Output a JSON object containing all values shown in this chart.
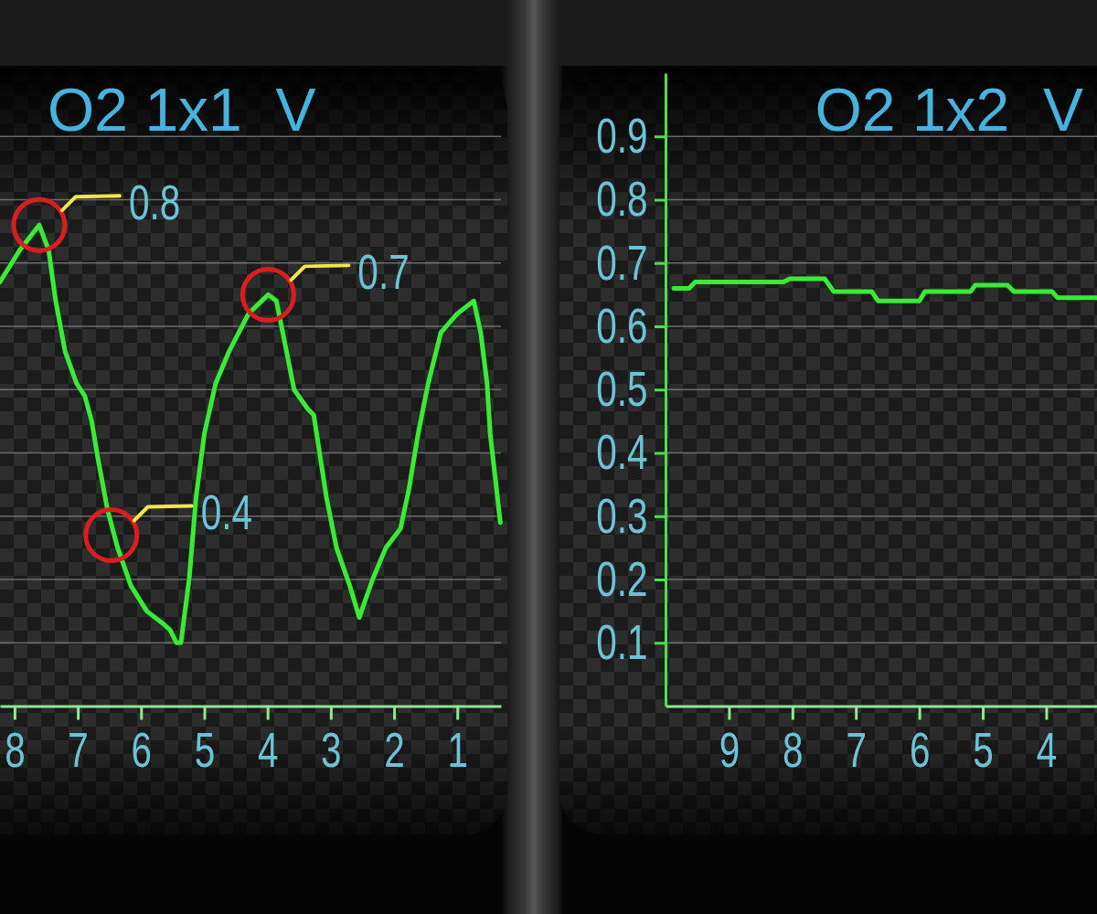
{
  "chart_data": [
    {
      "type": "line",
      "title": "O2 1x1  V",
      "x": [
        8.23,
        7.92,
        7.61,
        7.46,
        7.35,
        7.2,
        7.02,
        6.89,
        6.78,
        6.68,
        6.53,
        6.37,
        6.16,
        5.91,
        5.65,
        5.54,
        5.44,
        5.37,
        5.24,
        5.13,
        5.0,
        4.82,
        4.61,
        4.3,
        3.99,
        3.86,
        3.74,
        3.58,
        3.37,
        3.27,
        3.07,
        2.91,
        2.7,
        2.55,
        2.34,
        2.13,
        1.9,
        1.77,
        1.62,
        1.46,
        1.26,
        1.0,
        0.74,
        0.63,
        0.53,
        0.48,
        0.32
      ],
      "series": [
        {
          "color": "#3ee83a",
          "values": [
            0.67,
            0.72,
            0.76,
            0.72,
            0.64,
            0.56,
            0.51,
            0.49,
            0.45,
            0.39,
            0.31,
            0.25,
            0.19,
            0.15,
            0.13,
            0.12,
            0.1,
            0.1,
            0.2,
            0.33,
            0.43,
            0.51,
            0.56,
            0.62,
            0.65,
            0.64,
            0.58,
            0.5,
            0.47,
            0.46,
            0.33,
            0.25,
            0.19,
            0.14,
            0.2,
            0.25,
            0.28,
            0.34,
            0.43,
            0.51,
            0.59,
            0.62,
            0.64,
            0.59,
            0.51,
            0.43,
            0.29
          ]
        }
      ],
      "xlim": [
        8.23,
        0.31
      ],
      "xticks": [
        8,
        7,
        6,
        5,
        4,
        3,
        2,
        1
      ],
      "ylim": [
        0,
        0.9
      ],
      "yticks": [
        0.1,
        0.2,
        0.3,
        0.4,
        0.5,
        0.6,
        0.7,
        0.8,
        0.9
      ],
      "tick_labels": "x",
      "grid": "y",
      "annotations": [
        {
          "text": "0.8",
          "x": 7.61,
          "y": 0.76
        },
        {
          "text": "0.7",
          "x": 3.99,
          "y": 0.65
        },
        {
          "text": "0.4",
          "x": 6.47,
          "y": 0.27
        }
      ]
    },
    {
      "type": "line",
      "title": "O2 1x2  V",
      "x": [
        9.87,
        9.63,
        9.53,
        8.14,
        8.04,
        7.49,
        7.35,
        6.75,
        6.65,
        6.0,
        5.91,
        5.19,
        5.12,
        4.61,
        4.51,
        3.91,
        3.82,
        3.2
      ],
      "series": [
        {
          "color": "#3ee83a",
          "values": [
            0.66,
            0.66,
            0.67,
            0.67,
            0.675,
            0.675,
            0.655,
            0.655,
            0.64,
            0.64,
            0.655,
            0.655,
            0.665,
            0.665,
            0.655,
            0.655,
            0.645,
            0.645
          ]
        }
      ],
      "xlim": [
        10,
        3.2
      ],
      "xticks": [
        9,
        8,
        7,
        6,
        5,
        4
      ],
      "ylim": [
        0,
        1
      ],
      "yticks": [
        0.1,
        0.2,
        0.3,
        0.4,
        0.5,
        0.6,
        0.7,
        0.8,
        0.9
      ],
      "grid": "y"
    }
  ]
}
